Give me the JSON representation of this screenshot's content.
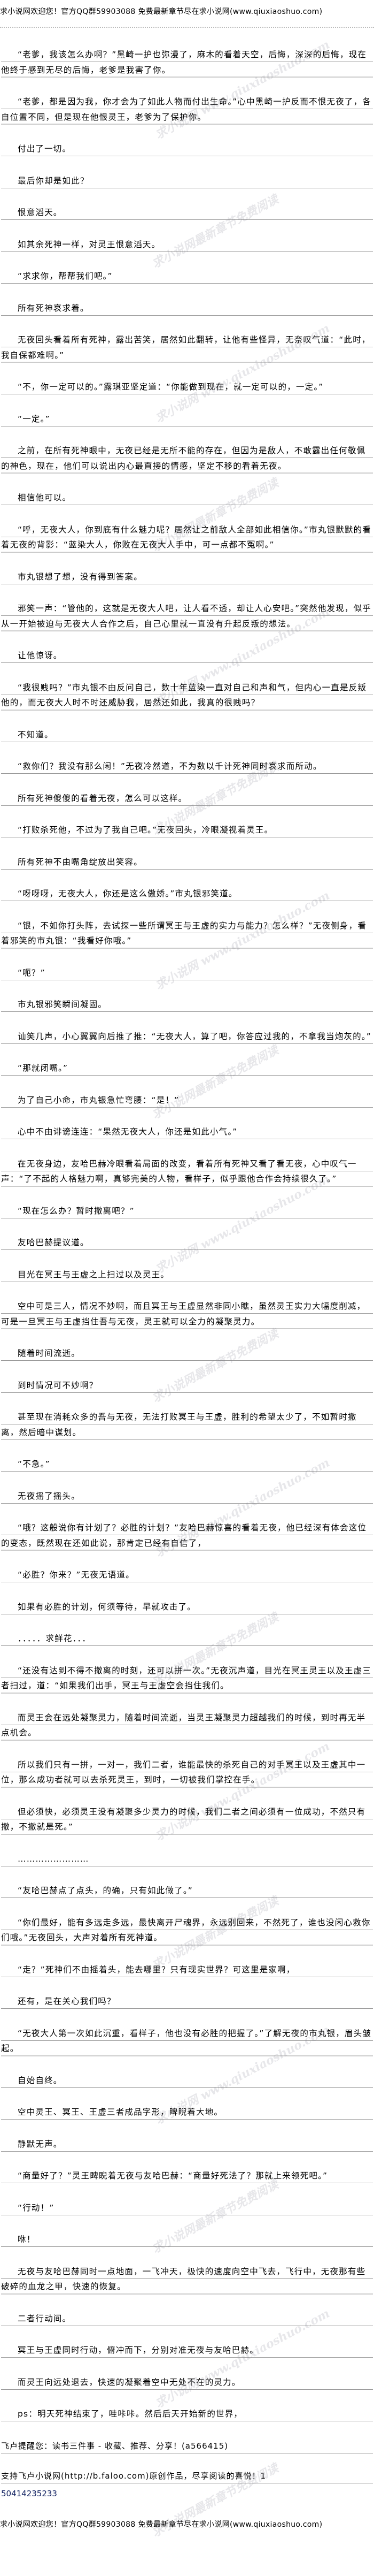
{
  "banner": "求小说网欢迎您！官方QQ群59903088 免费最新章节尽在求小说网(www.qiuxiaoshuo.com)",
  "watermarks": [
    "求小说网 www.qiuxiaoshuo.com",
    "求小说网最新章节免费阅读"
  ],
  "paragraphs": [
    "“老爹，我该怎么办啊？”黑崎一护也弥漫了，麻木的看着天空，后悔，深深的后悔，现在他终于感到无尽的后悔，老爹是我害了你。",
    "“老爹，都是因为我，你才会为了如此人物而付出生命。”心中黑崎一护反而不恨无夜了，各自位置不同，但是现在他恨灵王，老爹为了保护你。",
    "付出了一切。",
    "最后你却是如此？",
    "恨意滔天。",
    "如其余死神一样，对灵王恨意滔天。",
    "“求求你，帮帮我们吧。”",
    "所有死神哀求着。",
    "无夜回头看着所有死神，露出苦笑，居然如此翻转，让他有些怪异，无奈叹气道：“此时，我自保都难啊。”",
    "“不，你一定可以的。”露琪亚坚定道：“你能做到现在，就一定可以的，一定。”",
    "“一定。”",
    "之前，在所有死神眼中，无夜已经是无所不能的存在，但因为是敌人，不敢露出任何敬佩的神色，现在，他们可以说出内心最直接的情感，坚定不移的看着无夜。",
    "相信他可以。",
    "“呼，无夜大人，你到底有什么魅力呢？居然让之前敌人全部如此相信你。”市丸银默默的看着无夜的背影：“蓝染大人，你败在无夜大人手中，可一点都不冤啊。”",
    "市丸银想了想，没有得到答案。",
    "邪笑一声：“管他的，这就是无夜大人吧，让人看不透，却让人心安吧。”突然他发现，似乎从一开始被迫与无夜大人合作之后，自己心里就一直没有升起反叛的想法。",
    "让他惊讶。",
    "“我很贱吗？”市丸银不由反问自己，数十年蓝染一直对自己和声和气，但内心一直是反叛他的，而无夜大人时不时还威胁我，居然还如此，我真的很贱吗？",
    "不知道。",
    "“救你们？我没有那么闲！”无夜冷然道，不为数以千计死神同时哀求而所动。",
    "所有死神傻傻的看着无夜，怎么可以这样。",
    "“打败杀死他，不过为了我自己吧。”无夜回头，冷眼凝视着灵王。",
    "所有死神不由嘴角绽放出笑容。",
    "“呀呀呀，无夜大人，你还是这么傲娇。”市丸银邪笑道。",
    "“银，不如你打头阵，去试探一些所谓冥王与王虚的实力与能力？怎么样？”无夜侧身，看着邪笑的市丸银：“我看好你哦。”",
    "“呃？”",
    "市丸银邪笑瞬间凝固。",
    "讪笑几声，小心翼翼向后推了推：“无夜大人，算了吧，你答应过我的，不拿我当炮灰的。”",
    "“那就闭嘴。”",
    "为了自己小命，市丸银急忙弯腰：“是！”",
    "心中不由诽谤连连：“果然无夜大人，你还是如此小气。”",
    "在无夜身边，友哈巴赫冷眼看着局面的改变，看着所有死神又看了看无夜，心中叹气一声：“了不起的人格魅力啊，真够完美的人物，看样子，似乎跟他合作会持续很久了。”",
    "“现在怎么办？暂时撤离吧？”",
    "友哈巴赫提议道。",
    "目光在冥王与王虚之上扫过以及灵王。",
    "空中可是三人，情况不妙啊，而且冥王与王虚显然非同小瞧，虽然灵王实力大幅度削减，可是一旦冥王与王虚挡住吾与无夜，灵王就可以全力的凝聚灵力。",
    "随着时间流逝。",
    "到时情况可不妙啊？",
    "甚至现在消耗众多的吾与无夜，无法打败冥王与王虚，胜利的希望太少了，不如暂时撤离，然后暗中谋划。",
    "“不急。”",
    "无夜摇了摇头。",
    "“哦？这般说你有计划了？必胜的计划？”友哈巴赫惊喜的看着无夜，他已经深有体会这位的变态，既然现在还如此说，那肯定已经有自信了，",
    "“必胜？你来？”无夜无语道。",
    "如果有必胜的计划，何须等待，早就攻击了。",
    "．．．．．求鲜花．．．",
    "“还没有达到不得不撤离的时刻，还可以拼一次。”无夜沉声道，目光在冥王灵王以及王虚三者扫过，道：“如果我们出手，冥王与王虚空会挡住我们。",
    "而灵王会在远处凝聚灵力，随着时间流逝，当灵王凝聚灵力超越我们的时候，到时再无半点机会。",
    "所以我们只有一拼，一对一，我们二者，谁能最快的杀死自己的对手冥王以及王虚其中一位，那么成功者就可以去杀死灵王，到时，一切被我们掌控在手。",
    "但必须快，必须灵王没有凝聚多少灵力的时候，我们二者之间必须有一位成功，不然只有撤，不撤就是死。”",
    "……………………",
    "“友哈巴赫点了点头，的确，只有如此做了。”",
    "“你们最好，能有多远走多远，最快离开尸魂界，永远别回来，不然死了，谁也没闲心救你们哦。”无夜回头，大声对着所有死神道。",
    "“走？”死神们不由摇着头，能去哪里？只有现实世界？可这里是家啊，",
    "还有，是在关心我们吗？",
    "“无夜大人第一次如此沉重，看样子，他也没有必胜的把握了。”了解无夜的市丸银，眉头皱起。",
    "自始自终。",
    "空中灵王、冥王、王虚三者成品字形，睥睨着大地。",
    "静默无声。",
    "“商量好了？”灵王睥睨着无夜与友哈巴赫：“商量好死法了？那就上来领死吧。”",
    "“行动！”",
    "咻！",
    "无夜与友哈巴赫同时一点地面，一飞冲天，极快的速度向空中飞去，飞行中，无夜那有些破碎的血龙之甲，快速的恢复。",
    "二者行动间。",
    "冥王与王虚同时行动，俯冲而下，分别对准无夜与友哈巴赫。",
    "而灵王向远处退去，快速的凝聚着空中无处不在的灵力。",
    "ps：明天死神结束了，哇咔咔。然后后天开始新的世界，"
  ],
  "footer": {
    "reminder": "飞卢提醒您：读书三件事 - 收藏、推荐、分享！(a566415)",
    "support": "支持飞卢小说网(http://b.faloo.com)原创作品，尽享阅读的喜悦！1",
    "code": "50414235233"
  }
}
